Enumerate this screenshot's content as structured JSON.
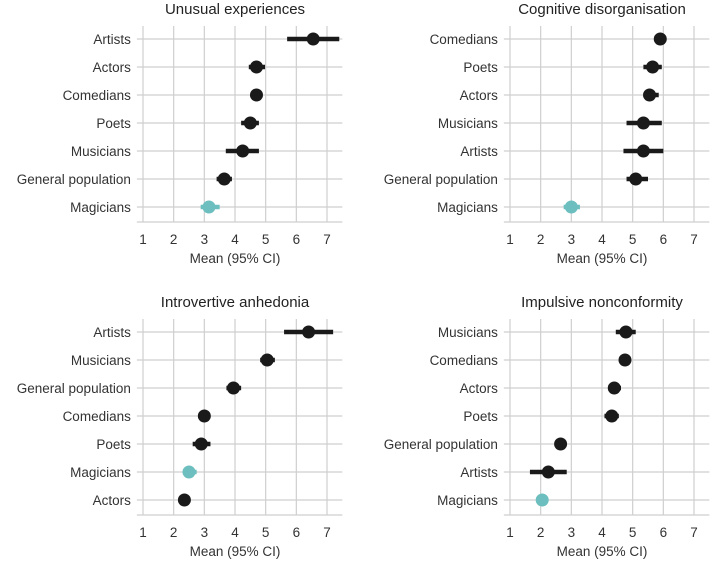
{
  "colors": {
    "default": "#1a1a1a",
    "highlight": "#6dbfbf"
  },
  "chart_data": [
    {
      "type": "scatter",
      "title": "Unusual experiences",
      "xlabel": "Mean (95% CI)",
      "xlim": [
        0.8,
        7.5
      ],
      "xticks": [
        1,
        2,
        3,
        4,
        5,
        6,
        7
      ],
      "points": [
        {
          "label": "Artists",
          "mean": 6.55,
          "lo": 5.7,
          "hi": 7.4,
          "highlight": false
        },
        {
          "label": "Actors",
          "mean": 4.7,
          "lo": 4.45,
          "hi": 4.98,
          "highlight": false
        },
        {
          "label": "Comedians",
          "mean": 4.7,
          "lo": 4.52,
          "hi": 4.9,
          "highlight": false
        },
        {
          "label": "Poets",
          "mean": 4.5,
          "lo": 4.2,
          "hi": 4.78,
          "highlight": false
        },
        {
          "label": "Musicians",
          "mean": 4.25,
          "lo": 3.7,
          "hi": 4.78,
          "highlight": false
        },
        {
          "label": "General population",
          "mean": 3.65,
          "lo": 3.4,
          "hi": 3.9,
          "highlight": false
        },
        {
          "label": "Magicians",
          "mean": 3.15,
          "lo": 2.88,
          "hi": 3.5,
          "highlight": true
        }
      ]
    },
    {
      "type": "scatter",
      "title": "Cognitive disorganisation",
      "xlabel": "Mean (95% CI)",
      "xlim": [
        0.8,
        7.5
      ],
      "xticks": [
        1,
        2,
        3,
        4,
        5,
        6,
        7
      ],
      "points": [
        {
          "label": "Comedians",
          "mean": 5.9,
          "lo": 5.7,
          "hi": 6.1,
          "highlight": false
        },
        {
          "label": "Poets",
          "mean": 5.65,
          "lo": 5.35,
          "hi": 5.95,
          "highlight": false
        },
        {
          "label": "Actors",
          "mean": 5.55,
          "lo": 5.35,
          "hi": 5.85,
          "highlight": false
        },
        {
          "label": "Musicians",
          "mean": 5.35,
          "lo": 4.8,
          "hi": 5.95,
          "highlight": false
        },
        {
          "label": "Artists",
          "mean": 5.35,
          "lo": 4.7,
          "hi": 6.0,
          "highlight": false
        },
        {
          "label": "General population",
          "mean": 5.1,
          "lo": 4.8,
          "hi": 5.5,
          "highlight": false
        },
        {
          "label": "Magicians",
          "mean": 3.0,
          "lo": 2.75,
          "hi": 3.28,
          "highlight": true
        }
      ]
    },
    {
      "type": "scatter",
      "title": "Introvertive anhedonia",
      "xlabel": "Mean (95% CI)",
      "xlim": [
        0.8,
        7.5
      ],
      "xticks": [
        1,
        2,
        3,
        4,
        5,
        6,
        7
      ],
      "points": [
        {
          "label": "Artists",
          "mean": 6.4,
          "lo": 5.6,
          "hi": 7.2,
          "highlight": false
        },
        {
          "label": "Musicians",
          "mean": 5.05,
          "lo": 4.82,
          "hi": 5.3,
          "highlight": false
        },
        {
          "label": "General population",
          "mean": 3.95,
          "lo": 3.72,
          "hi": 4.2,
          "highlight": false
        },
        {
          "label": "Comedians",
          "mean": 3.0,
          "lo": 3.0,
          "hi": 3.0,
          "highlight": false
        },
        {
          "label": "Poets",
          "mean": 2.9,
          "lo": 2.62,
          "hi": 3.2,
          "highlight": false
        },
        {
          "label": "Magicians",
          "mean": 2.5,
          "lo": 2.3,
          "hi": 2.75,
          "highlight": true
        },
        {
          "label": "Actors",
          "mean": 2.35,
          "lo": 2.35,
          "hi": 2.35,
          "highlight": false
        }
      ]
    },
    {
      "type": "scatter",
      "title": "Impulsive nonconformity",
      "xlabel": "Mean (95% CI)",
      "xlim": [
        0.8,
        7.5
      ],
      "xticks": [
        1,
        2,
        3,
        4,
        5,
        6,
        7
      ],
      "points": [
        {
          "label": "Musicians",
          "mean": 4.78,
          "lo": 4.45,
          "hi": 5.1,
          "highlight": false
        },
        {
          "label": "Comedians",
          "mean": 4.75,
          "lo": 4.75,
          "hi": 4.75,
          "highlight": false
        },
        {
          "label": "Actors",
          "mean": 4.4,
          "lo": 4.2,
          "hi": 4.62,
          "highlight": false
        },
        {
          "label": "Poets",
          "mean": 4.32,
          "lo": 4.08,
          "hi": 4.55,
          "highlight": false
        },
        {
          "label": "General population",
          "mean": 2.65,
          "lo": 2.65,
          "hi": 2.65,
          "highlight": false
        },
        {
          "label": "Artists",
          "mean": 2.25,
          "lo": 1.65,
          "hi": 2.85,
          "highlight": false
        },
        {
          "label": "Magicians",
          "mean": 2.05,
          "lo": 1.85,
          "hi": 2.25,
          "highlight": true
        }
      ]
    }
  ]
}
